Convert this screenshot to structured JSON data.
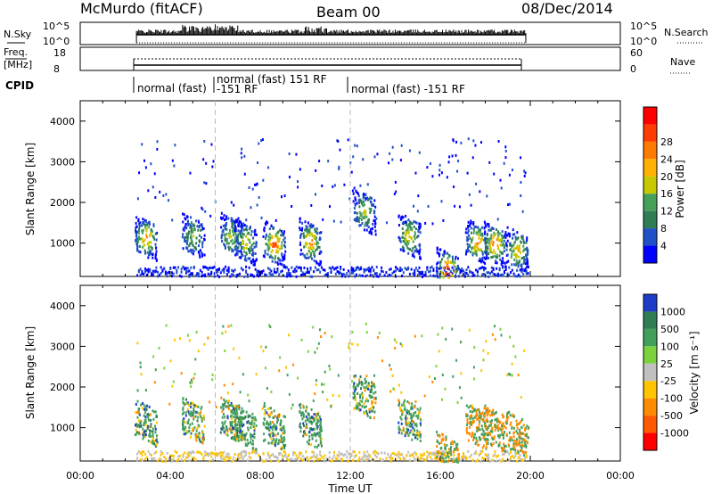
{
  "header": {
    "left_title": "McMurdo (fitACF)",
    "center_title": "Beam 00",
    "right_title": "08/Dec/2014"
  },
  "status_panel": {
    "nsky_label": "N.Sky",
    "nsky_ticks": [
      "10^5",
      "10^0"
    ],
    "nsearch_label": "N.Search",
    "nsearch_ticks": [
      "10^5",
      "10^0"
    ],
    "freq_label_1": "Freq.",
    "freq_label_2": "[MHz]",
    "freq_ticks": [
      "18",
      "8"
    ],
    "nave_label": "Nave",
    "nave_ticks": [
      "60",
      "0"
    ],
    "cpid_label": "CPID",
    "cpid_segments": [
      {
        "label": "normal (fast)",
        "row": 0
      },
      {
        "label": "normal (fast) 151 RF",
        "row": -1
      },
      {
        "label": "-151 RF",
        "row": 0
      },
      {
        "label": "normal (fast) -151 RF",
        "row": 0
      }
    ]
  },
  "power_panel": {
    "ylabel": "Slant Range [km]",
    "yticks": [
      "1000",
      "2000",
      "3000",
      "4000"
    ],
    "colorbar_label": "Power [dB]",
    "colorbar_ticks": [
      "4",
      "8",
      "12",
      "16",
      "20",
      "24",
      "28"
    ],
    "colors": [
      "#0000ff",
      "#2050c8",
      "#2e7d55",
      "#47a05a",
      "#c8c800",
      "#ffb000",
      "#ff7a00",
      "#ff3c00",
      "#ff0000"
    ]
  },
  "velocity_panel": {
    "ylabel": "Slant Range [km]",
    "yticks": [
      "1000",
      "2000",
      "3000",
      "4000"
    ],
    "colorbar_label": "Velocity [m s⁻¹]",
    "colorbar_ticks": [
      "1000",
      "500",
      "100",
      "25",
      "-25",
      "-100",
      "-500",
      "-1000"
    ],
    "colors": [
      "#1e3cc8",
      "#2e7d55",
      "#43a05a",
      "#7cd23c",
      "#c0c0c0",
      "#ffc400",
      "#ff8c00",
      "#ff5a00",
      "#ff0000"
    ]
  },
  "xaxis": {
    "label": "Time UT",
    "ticks": [
      "00:00",
      "04:00",
      "08:00",
      "12:00",
      "16:00",
      "20:00",
      "00:00"
    ]
  },
  "chart_data": {
    "type": "heatmap",
    "title": "McMurdo (fitACF) Beam 00 08/Dec/2014",
    "xlabel": "Time UT",
    "ylabel": "Slant Range [km]",
    "xlim": [
      0,
      24
    ],
    "ylim": [
      180,
      4500
    ],
    "cpid_changes_hours": [
      6.0,
      12.0
    ],
    "data_window_hours": [
      2.5,
      19.8
    ],
    "echo_regions": [
      {
        "t": 2.9,
        "r": 1150,
        "level": 6
      },
      {
        "t": 5.0,
        "r": 1200,
        "level": 3
      },
      {
        "t": 6.7,
        "r": 1200,
        "level": 4
      },
      {
        "t": 7.3,
        "r": 1050,
        "level": 4
      },
      {
        "t": 8.6,
        "r": 1000,
        "level": 7
      },
      {
        "t": 10.2,
        "r": 1050,
        "level": 6
      },
      {
        "t": 12.6,
        "r": 1800,
        "level": 4
      },
      {
        "t": 14.6,
        "r": 1200,
        "level": 5
      },
      {
        "t": 16.3,
        "r": 350,
        "level": 8
      },
      {
        "t": 17.6,
        "r": 1050,
        "level": 6
      },
      {
        "t": 18.4,
        "r": 1000,
        "level": 7
      },
      {
        "t": 19.4,
        "r": 850,
        "level": 5
      }
    ]
  }
}
